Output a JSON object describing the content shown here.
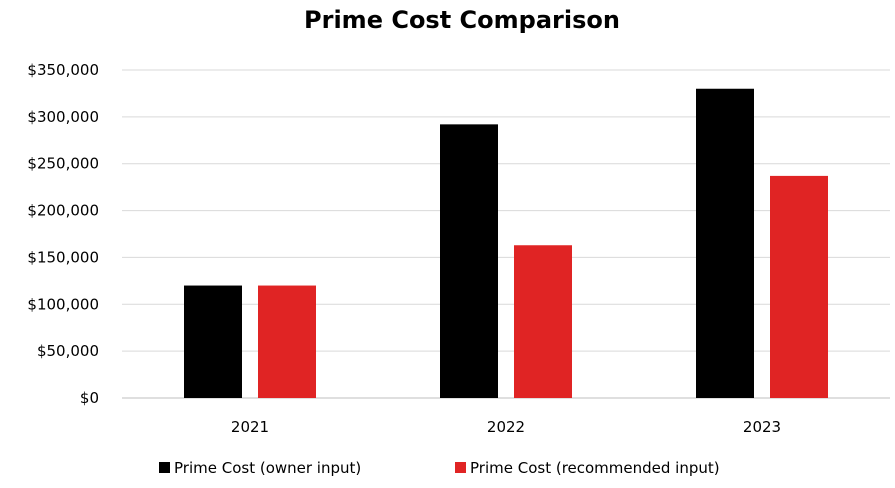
{
  "chart_data": {
    "type": "bar",
    "title": "Prime Cost Comparison",
    "xlabel": "",
    "ylabel": "",
    "categories": [
      "2021",
      "2022",
      "2023"
    ],
    "series": [
      {
        "name": "Prime Cost (owner input)",
        "color": "#000000",
        "values": [
          120000,
          292000,
          330000
        ]
      },
      {
        "name": "Prime Cost (recommended input)",
        "color": "#e02424",
        "values": [
          120000,
          163000,
          237000
        ]
      }
    ],
    "ylim": [
      0,
      350000
    ],
    "yticks": [
      0,
      50000,
      100000,
      150000,
      200000,
      250000,
      300000,
      350000
    ],
    "ytick_labels": [
      "$0",
      "$50,000",
      "$100,000",
      "$150,000",
      "$200,000",
      "$250,000",
      "$300,000",
      "$350,000"
    ],
    "grid": true,
    "legend_position": "bottom"
  }
}
